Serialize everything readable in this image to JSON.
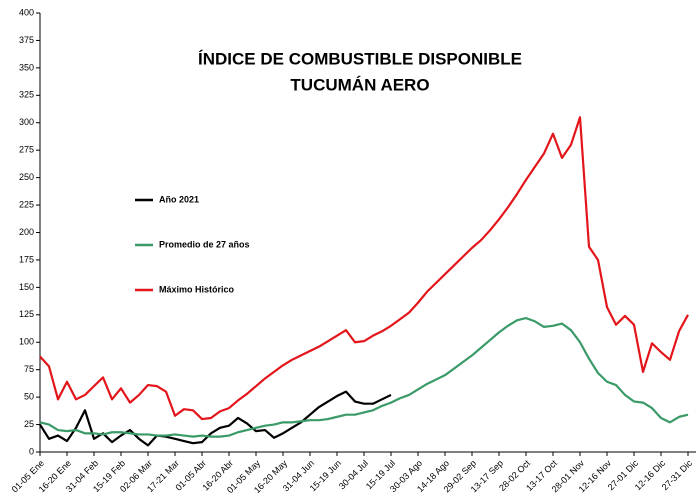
{
  "chart_data": {
    "type": "line",
    "title": [
      "ÍNDICE DE COMBUSTIBLE DISPONIBLE",
      "TUCUMÁN AERO"
    ],
    "categories": [
      "01-05 Ene",
      null,
      null,
      "16-20 Ene",
      null,
      null,
      "31-04 Feb",
      null,
      null,
      "15-19 Feb",
      null,
      null,
      "02-06 Mar",
      null,
      null,
      "17-21 Mar",
      null,
      null,
      "01-05 Abr",
      null,
      null,
      "16-20 Abr",
      null,
      null,
      "01-05 May",
      null,
      null,
      "16-20 May",
      null,
      null,
      "31-04 Jun",
      null,
      null,
      "15-19 Jun",
      null,
      null,
      "30-04 Jul",
      null,
      null,
      "15-19 Jul",
      null,
      null,
      "30-03 Ago",
      null,
      null,
      "14-18 Ago",
      null,
      null,
      "29-02 Sep",
      null,
      null,
      "13-17 Sep",
      null,
      null,
      "28-02 Oct",
      null,
      null,
      "13-17 Oct",
      null,
      null,
      "28-01 Nov",
      null,
      null,
      "12-16 Nov",
      null,
      null,
      "27-01 Dic",
      null,
      null,
      "12-16 Dic",
      null,
      null,
      "27-31 Dic"
    ],
    "series": [
      {
        "name": "Año 2021",
        "color": "#000000",
        "values": [
          25,
          12,
          15,
          10,
          22,
          38,
          12,
          17,
          9,
          15,
          20,
          12,
          6,
          15,
          14,
          12,
          10,
          8,
          9,
          17,
          22,
          24,
          31,
          26,
          19,
          20,
          13,
          17,
          22,
          27,
          34,
          41,
          46,
          51,
          55,
          46,
          44,
          44,
          48,
          52,
          null,
          null,
          null,
          null,
          null,
          null,
          null,
          null,
          null,
          null,
          null,
          null,
          null,
          null,
          null,
          null,
          null,
          null,
          null,
          null,
          null,
          null,
          null,
          null,
          null,
          null,
          null,
          null,
          null,
          null,
          null,
          null,
          null
        ]
      },
      {
        "name": "Promedio de 27 años",
        "color": "#3a9a68",
        "values": [
          27,
          25,
          20,
          19,
          20,
          17,
          17,
          16,
          18,
          18,
          17,
          16,
          16,
          15,
          15,
          16,
          15,
          14,
          15,
          14,
          14,
          15,
          18,
          20,
          22,
          24,
          25,
          27,
          27,
          28,
          29,
          29,
          30,
          32,
          34,
          34,
          36,
          38,
          42,
          45,
          49,
          52,
          57,
          62,
          66,
          70,
          76,
          82,
          88,
          95,
          102,
          109,
          115,
          120,
          122,
          119,
          114,
          115,
          117,
          111,
          100,
          85,
          72,
          64,
          61,
          52,
          46,
          45,
          40,
          31,
          27,
          32,
          34
        ]
      },
      {
        "name": "Máximo Histórico",
        "color": "#e3151a",
        "values": [
          87,
          78,
          48,
          64,
          48,
          52,
          60,
          68,
          48,
          58,
          45,
          52,
          61,
          60,
          55,
          33,
          39,
          38,
          30,
          31,
          37,
          40,
          47,
          53,
          60,
          67,
          73,
          79,
          84,
          88,
          92,
          96,
          101,
          106,
          111,
          100,
          101,
          106,
          110,
          115,
          121,
          127,
          136,
          146,
          154,
          162,
          170,
          178,
          186,
          193,
          202,
          212,
          223,
          235,
          248,
          260,
          272,
          290,
          268,
          280,
          305,
          187,
          175,
          132,
          116,
          124,
          116,
          73,
          99,
          91,
          84,
          110,
          125
        ]
      }
    ],
    "ylim": [
      0,
      400
    ],
    "yticks": [
      0,
      25,
      50,
      75,
      100,
      125,
      150,
      175,
      200,
      225,
      250,
      275,
      300,
      325,
      350,
      375,
      400
    ]
  }
}
